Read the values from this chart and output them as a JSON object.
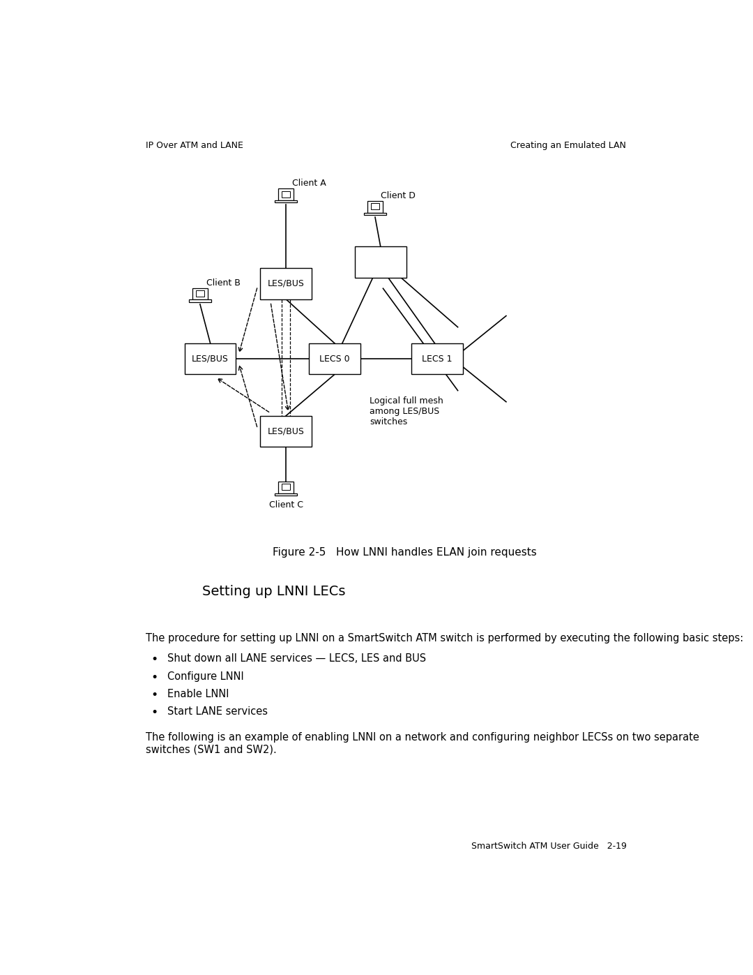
{
  "header_left": "IP Over ATM and LANE",
  "header_right": "Creating an Emulated LAN",
  "footer": "SmartSwitch ATM User Guide   2-19",
  "figure_caption": "Figure 2-5   How LNNI handles ELAN join requests",
  "section_title": "Setting up LNNI LECs",
  "body_text1": "The procedure for setting up LNNI on a SmartSwitch ATM switch is performed by executing the following basic steps:",
  "bullets": [
    "Shut down all LANE services — LECS, LES and BUS",
    "Configure LNNI",
    "Enable LNNI",
    "Start LANE services"
  ],
  "body_text2": "The following is an example of enabling LNNI on a network and configuring neighbor LECSs on two separate\nswitches (SW1 and SW2).",
  "bg_color": "#ffffff",
  "font_size_body": 10.5,
  "font_size_header": 9.0,
  "font_size_caption": 11.0,
  "font_size_section": 14.0,
  "font_size_node": 9.0,
  "font_size_label": 9.0
}
